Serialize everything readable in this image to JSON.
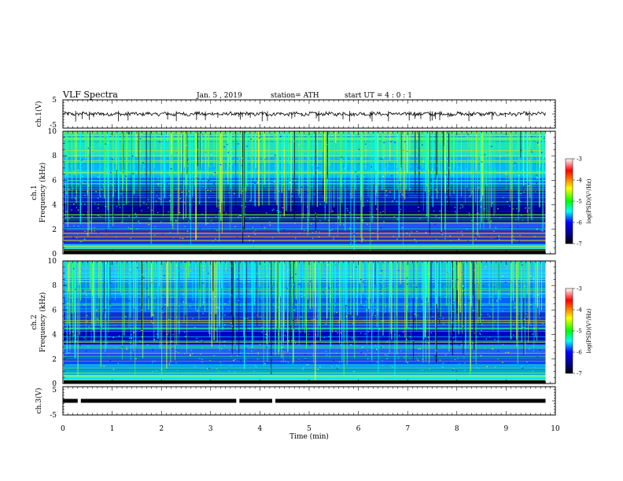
{
  "header": {
    "title": "VLF  Spectra",
    "date": "Jan.  5  , 2019",
    "station": "station= ATH",
    "start": "start  UT  =   4  : 0   : 1"
  },
  "panels": {
    "ch1_wave": {
      "ylabel": "ch.1(V)",
      "ticks": [
        "5",
        "-5"
      ]
    },
    "ch1_spec": {
      "ylabel_top": "ch.1",
      "ylabel": "Frequency  (kHz)",
      "ticks": [
        "0",
        "2",
        "4",
        "6",
        "8",
        "10"
      ]
    },
    "ch2_spec": {
      "ylabel_top": "ch.2",
      "ylabel": "Frequency  (kHz)",
      "ticks": [
        "0",
        "2",
        "4",
        "6",
        "8",
        "10"
      ]
    },
    "ch3_wave": {
      "ylabel": "ch.3(V)",
      "ticks": [
        "5",
        "-5"
      ]
    }
  },
  "colorbar": {
    "label": "log(PSD)(V²/Hz)",
    "ticks": [
      "-3",
      "-4",
      "-5",
      "-6",
      "-7"
    ],
    "colors": [
      "#ffffff",
      "#ff0000",
      "#ffff00",
      "#00ff00",
      "#00ffff",
      "#0000ff",
      "#000080",
      "#000000"
    ]
  },
  "xaxis": {
    "label": "Time  (min)",
    "ticks": [
      "0",
      "1",
      "2",
      "3",
      "4",
      "5",
      "6",
      "7",
      "8",
      "9",
      "10"
    ]
  },
  "chart_data": [
    {
      "type": "line",
      "title": "",
      "ylabel": "ch.1(V)",
      "xlabel": "",
      "xlim": [
        0,
        10
      ],
      "ylim": [
        -5,
        5
      ],
      "series": [
        {
          "x": [
            0,
            9.8
          ],
          "values": [
            0,
            0
          ]
        }
      ]
    },
    {
      "type": "heatmap",
      "ylabel": "Frequency  (kHz)",
      "xlim": [
        0,
        10
      ],
      "ylim": [
        0,
        10
      ],
      "data_xlim": [
        0,
        9.8
      ],
      "zlim": [
        -7,
        -3
      ]
    },
    {
      "type": "heatmap",
      "ylabel": "Frequency  (kHz)",
      "xlim": [
        0,
        10
      ],
      "ylim": [
        0,
        10
      ],
      "data_xlim": [
        0,
        9.8
      ],
      "zlim": [
        -7,
        -3
      ]
    },
    {
      "type": "line",
      "ylabel": "ch.3(V)",
      "xlabel": "Time  (min)",
      "xlim": [
        0,
        10
      ],
      "ylim": [
        -5,
        5
      ],
      "series": [
        {
          "x": [
            0,
            9.8
          ],
          "values": [
            0,
            0
          ]
        }
      ]
    }
  ]
}
